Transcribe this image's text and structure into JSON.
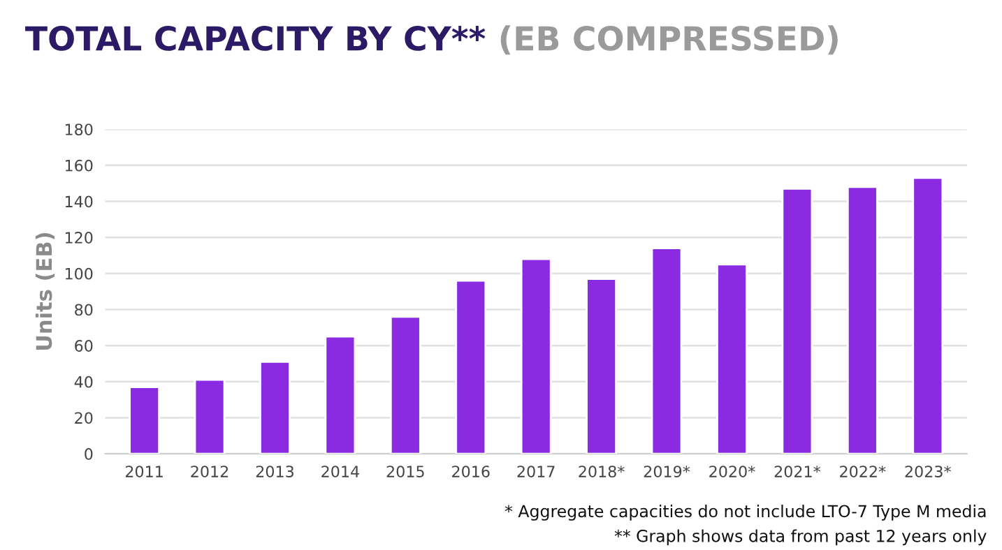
{
  "chart_data": {
    "type": "bar",
    "title": "TOTAL CAPACITY BY CY**",
    "subtitle": "(EB COMPRESSED)",
    "ylabel": "Units (EB)",
    "categories": [
      "2011",
      "2012",
      "2013",
      "2014",
      "2015",
      "2016",
      "2017",
      "2018*",
      "2019*",
      "2020*",
      "2021*",
      "2022*",
      "2023*"
    ],
    "values": [
      37,
      41,
      51,
      65,
      76,
      96,
      108,
      97,
      114,
      105,
      147,
      148,
      153
    ],
    "color": "#8a2be2",
    "ylim": [
      0,
      180
    ],
    "yticks": [
      0,
      20,
      40,
      60,
      80,
      100,
      120,
      140,
      160,
      180
    ],
    "grid": "y",
    "legend": false,
    "annotations": [
      "* Aggregate capacities do not include LTO-7 Type M media",
      "** Graph shows data from past 12 years only"
    ]
  }
}
